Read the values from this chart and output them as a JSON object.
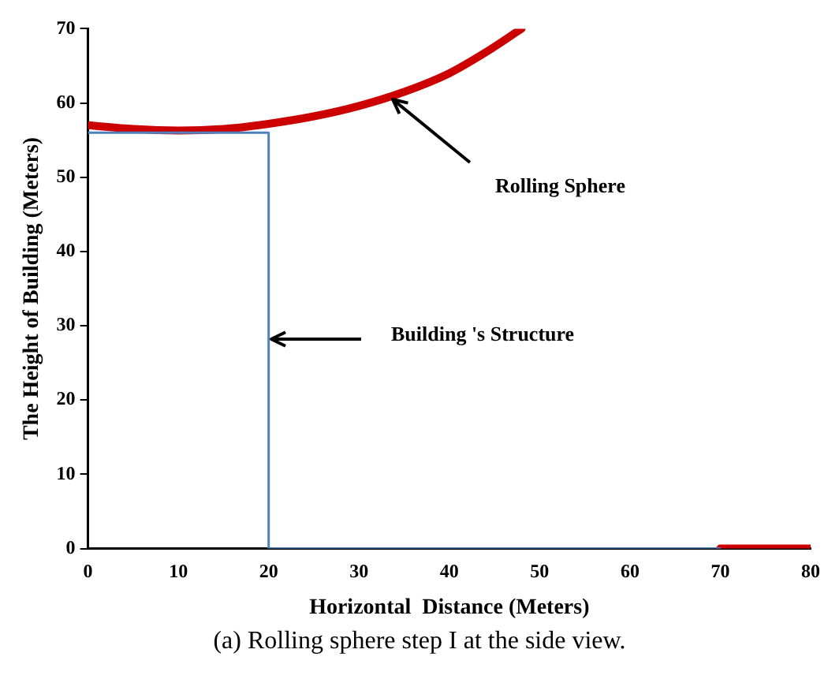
{
  "chart_data": {
    "type": "line",
    "xlabel": "Horizontal  Distance (Meters)",
    "ylabel": "The Height of Building (Meters)",
    "series": [
      {
        "color": "#4f81bd",
        "x": [
          0,
          20,
          20,
          70
        ],
        "values": [
          56,
          56,
          0,
          0
        ]
      },
      {
        "color": "#cc0000",
        "x": [
          0,
          5,
          10,
          15,
          20,
          25,
          30,
          35,
          40,
          44,
          48
        ],
        "values": [
          57,
          56.5,
          56.3,
          56.5,
          57.2,
          58.2,
          59.6,
          61.5,
          64,
          66.8,
          70
        ]
      },
      {
        "color": "#cc0000",
        "x": [
          70,
          80
        ],
        "values": [
          0,
          0
        ]
      }
    ],
    "xlim": [
      0,
      80
    ],
    "ylim": [
      0,
      70
    ],
    "xticks": [
      0,
      10,
      20,
      30,
      40,
      50,
      60,
      70,
      80
    ],
    "yticks": [
      0,
      10,
      20,
      30,
      40,
      50,
      60,
      70
    ],
    "grid": false,
    "legend": false,
    "marker": "none",
    "annotations": [
      "Rolling Sphere",
      "Building 's Structure",
      "(a) Rolling sphere step I at the side view."
    ]
  }
}
